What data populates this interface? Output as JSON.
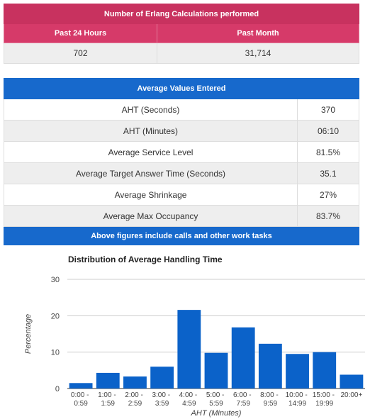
{
  "erlang_table": {
    "title": "Number of Erlang Calculations performed",
    "headers": [
      "Past 24 Hours",
      "Past Month"
    ],
    "values": [
      "702",
      "31,714"
    ]
  },
  "averages_table": {
    "title": "Average Values Entered",
    "rows": [
      [
        "AHT (Seconds)",
        "370"
      ],
      [
        "AHT (Minutes)",
        "06:10"
      ],
      [
        "Average Service Level",
        "81.5%"
      ],
      [
        "Average Target Answer Time (Seconds)",
        "35.1"
      ],
      [
        "Average Shrinkage",
        "27%"
      ],
      [
        "Average Max Occupancy",
        "83.7%"
      ]
    ],
    "footer": "Above figures include calls and other work tasks"
  },
  "chart_data": {
    "type": "bar",
    "title": "Distribution of Average Handling Time",
    "x_label": "AHT (Minutes)",
    "y_label": "Percentage",
    "categories": [
      "0:00 - 0:59",
      "1:00 - 1:59",
      "2:00 - 2:59",
      "3:00 - 3:59",
      "4:00 - 4:59",
      "5:00 - 5:59",
      "6:00 - 7:59",
      "8:00 - 9:59",
      "10:00 - 14:99",
      "15:00 - 19:99",
      "20:00+"
    ],
    "values": [
      1.5,
      4.3,
      3.3,
      6,
      21.6,
      9.8,
      16.8,
      12.3,
      9.5,
      10,
      3.8
    ],
    "color": "#0b62c9",
    "ylim": [
      0,
      30
    ],
    "yticks": [
      0,
      10,
      20,
      30
    ],
    "grid": true
  }
}
